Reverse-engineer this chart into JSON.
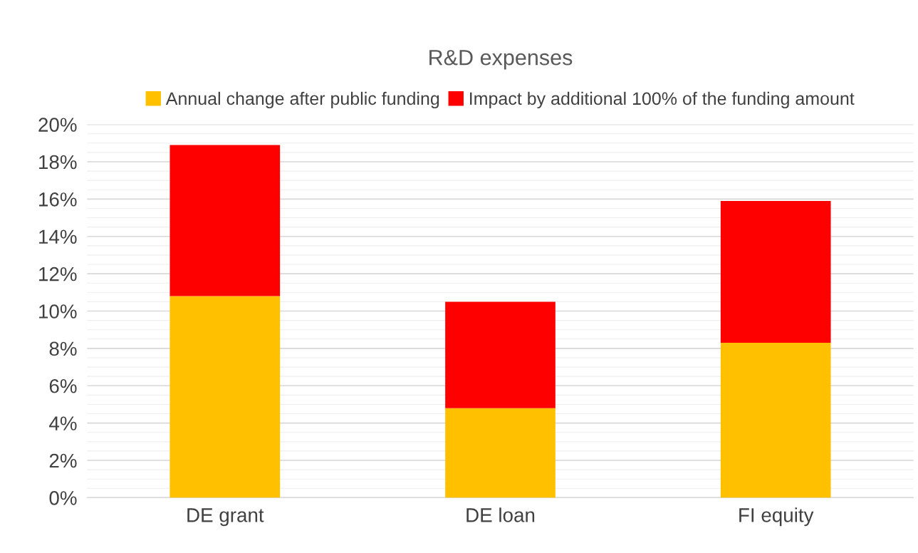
{
  "chart_data": {
    "type": "bar",
    "title": "R&D expenses",
    "categories": [
      "DE grant",
      "DE loan",
      "FI equity"
    ],
    "stacked": true,
    "series": [
      {
        "name": "Annual change after public funding",
        "color": "#ffc000",
        "values": [
          10.8,
          4.8,
          8.3
        ]
      },
      {
        "name": "Impact by additional 100% of the funding amount",
        "color": "#ff0000",
        "values": [
          8.1,
          5.7,
          7.6
        ]
      }
    ],
    "ylim": [
      0,
      20
    ],
    "yticks": [
      {
        "value": 0,
        "label": "0%"
      },
      {
        "value": 2,
        "label": "2%"
      },
      {
        "value": 4,
        "label": "4%"
      },
      {
        "value": 6,
        "label": "6%"
      },
      {
        "value": 8,
        "label": "8%"
      },
      {
        "value": 10,
        "label": "10%"
      },
      {
        "value": 12,
        "label": "12%"
      },
      {
        "value": 14,
        "label": "14%"
      },
      {
        "value": 16,
        "label": "16%"
      },
      {
        "value": 18,
        "label": "18%"
      },
      {
        "value": 20,
        "label": "20%"
      }
    ],
    "grid": "y",
    "legend": "top"
  }
}
